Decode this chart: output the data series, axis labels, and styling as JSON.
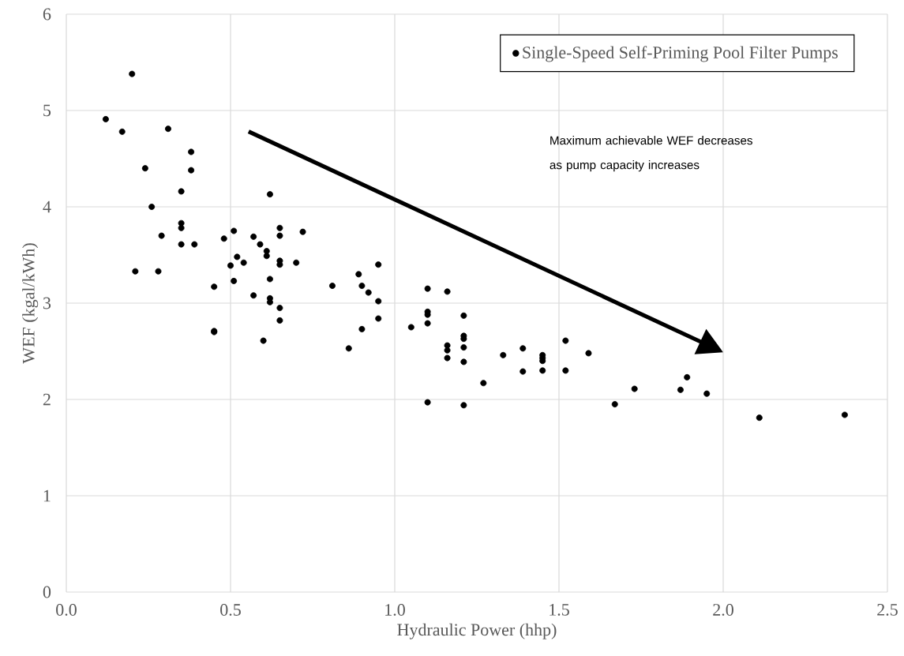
{
  "chart_data": {
    "type": "scatter",
    "xlabel": "Hydraulic Power (hhp)",
    "ylabel": "WEF (kgal/kWh)",
    "xlim": [
      0,
      2.5
    ],
    "ylim": [
      0,
      6
    ],
    "xticks": [
      {
        "value": 0,
        "label": "0.0"
      },
      {
        "value": 0.5,
        "label": "0.5"
      },
      {
        "value": 1,
        "label": "1.0"
      },
      {
        "value": 1.5,
        "label": "1.5"
      },
      {
        "value": 2,
        "label": "2.0"
      },
      {
        "value": 2.5,
        "label": "2.5"
      }
    ],
    "yticks": [
      0,
      1,
      2,
      3,
      4,
      5,
      6
    ],
    "grid": true,
    "legend": "top right",
    "marker": "circle",
    "annotations": [
      "Maximum achievable WEF decreases as pump capacity increases"
    ],
    "series": [
      {
        "name": "Single-Speed Self-Priming Pool Filter Pumps",
        "color": "#000000",
        "x": [
          0.2,
          0.12,
          0.17,
          0.31,
          0.38,
          0.24,
          0.38,
          0.35,
          0.62,
          0.26,
          0.35,
          0.35,
          0.65,
          0.29,
          0.51,
          0.48,
          0.57,
          0.65,
          0.72,
          0.35,
          0.39,
          0.59,
          0.61,
          0.61,
          0.52,
          0.54,
          0.65,
          0.65,
          0.7,
          0.5,
          0.21,
          0.28,
          0.81,
          0.45,
          0.51,
          0.62,
          0.57,
          0.62,
          0.62,
          0.65,
          0.65,
          0.45,
          0.45,
          0.6,
          0.89,
          0.9,
          0.92,
          0.95,
          0.95,
          0.95,
          0.9,
          0.86,
          1.05,
          1.1,
          1.16,
          1.1,
          1.1,
          1.1,
          1.16,
          1.16,
          1.16,
          1.21,
          1.21,
          1.21,
          1.21,
          1.21,
          1.27,
          1.1,
          1.21,
          1.33,
          1.39,
          1.39,
          1.45,
          1.45,
          1.45,
          1.45,
          1.52,
          1.52,
          1.59,
          1.67,
          1.73,
          1.89,
          1.87,
          1.95,
          2.11,
          2.37
        ],
        "values": [
          5.38,
          4.91,
          4.78,
          4.81,
          4.57,
          4.4,
          4.38,
          4.16,
          4.13,
          4.0,
          3.83,
          3.78,
          3.78,
          3.7,
          3.75,
          3.67,
          3.69,
          3.7,
          3.74,
          3.61,
          3.61,
          3.61,
          3.54,
          3.49,
          3.48,
          3.42,
          3.44,
          3.4,
          3.42,
          3.39,
          3.33,
          3.33,
          3.18,
          3.17,
          3.23,
          3.25,
          3.08,
          3.05,
          3.01,
          2.95,
          2.82,
          2.7,
          2.71,
          2.61,
          3.3,
          3.18,
          3.11,
          3.4,
          3.02,
          2.84,
          2.73,
          2.53,
          2.75,
          3.15,
          3.12,
          2.91,
          2.88,
          2.79,
          2.56,
          2.51,
          2.43,
          2.87,
          2.66,
          2.63,
          2.54,
          2.39,
          2.17,
          1.97,
          1.94,
          2.46,
          2.53,
          2.29,
          2.46,
          2.43,
          2.4,
          2.3,
          2.61,
          2.3,
          2.48,
          1.95,
          2.11,
          2.23,
          2.1,
          2.06,
          1.81,
          1.84
        ]
      }
    ]
  }
}
